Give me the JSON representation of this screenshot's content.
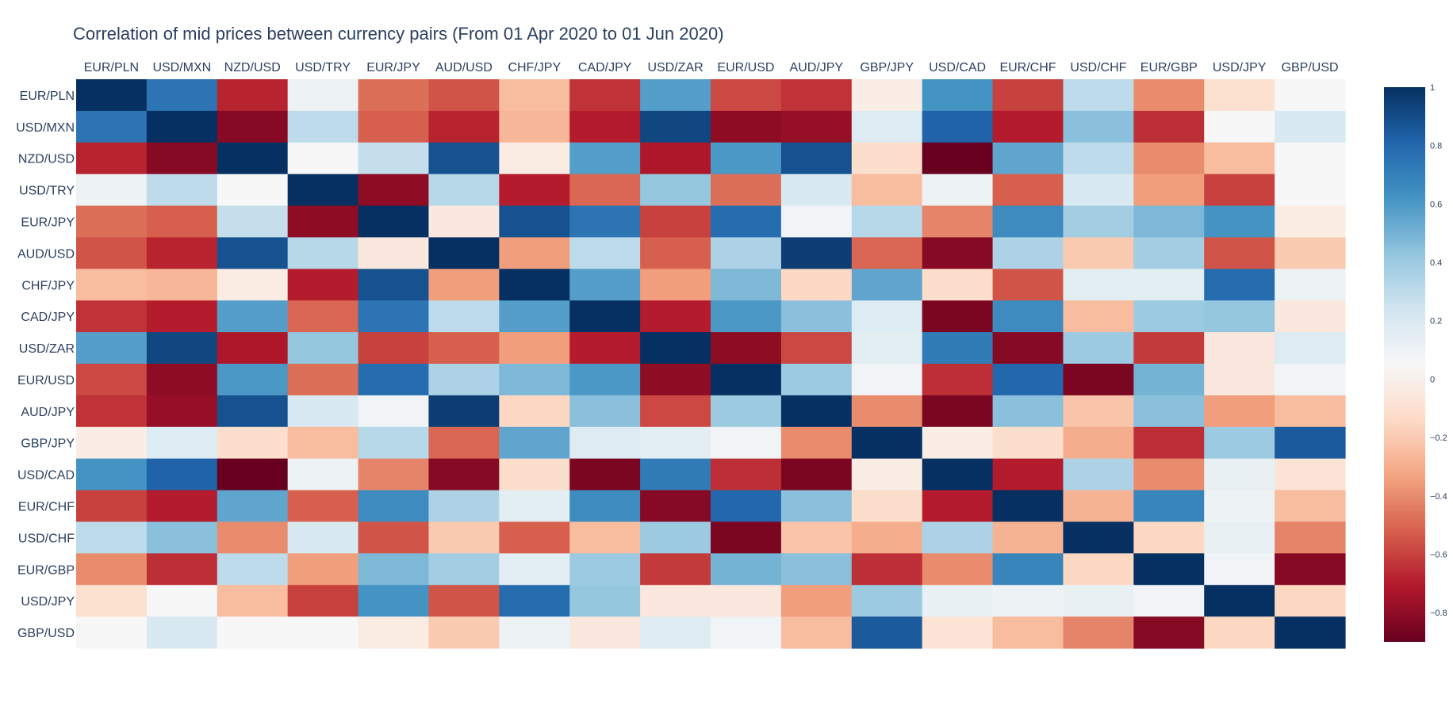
{
  "chart_data": {
    "type": "heatmap",
    "title": "Correlation of mid prices between currency pairs (From 01 Apr 2020 to 01 Jun 2020)",
    "x_labels": [
      "EUR/PLN",
      "USD/MXN",
      "NZD/USD",
      "USD/TRY",
      "EUR/JPY",
      "AUD/USD",
      "CHF/JPY",
      "CAD/JPY",
      "USD/ZAR",
      "EUR/USD",
      "AUD/JPY",
      "GBP/JPY",
      "USD/CAD",
      "EUR/CHF",
      "USD/CHF",
      "EUR/GBP",
      "USD/JPY",
      "GBP/USD"
    ],
    "y_labels": [
      "EUR/PLN",
      "USD/MXN",
      "NZD/USD",
      "USD/TRY",
      "EUR/JPY",
      "AUD/USD",
      "CHF/JPY",
      "CAD/JPY",
      "USD/ZAR",
      "EUR/USD",
      "AUD/JPY",
      "GBP/JPY",
      "USD/CAD",
      "EUR/CHF",
      "USD/CHF",
      "EUR/GBP",
      "USD/JPY",
      "GBP/USD"
    ],
    "z": [
      [
        1.0,
        0.75,
        -0.68,
        0.1,
        -0.48,
        -0.55,
        -0.25,
        -0.64,
        0.58,
        -0.58,
        -0.64,
        -0.02,
        0.62,
        -0.6,
        0.3,
        -0.4,
        -0.1,
        0.05
      ],
      [
        0.75,
        1.0,
        -0.82,
        0.3,
        -0.52,
        -0.68,
        -0.27,
        -0.7,
        0.92,
        -0.8,
        -0.78,
        0.18,
        0.82,
        -0.7,
        0.45,
        -0.65,
        0.05,
        0.2
      ],
      [
        -0.68,
        -0.82,
        1.0,
        0.05,
        0.28,
        0.88,
        -0.03,
        0.58,
        -0.72,
        0.6,
        0.88,
        -0.12,
        -0.98,
        0.55,
        0.3,
        -0.4,
        -0.25,
        0.05
      ],
      [
        0.1,
        0.3,
        0.05,
        1.0,
        -0.8,
        0.32,
        -0.7,
        -0.5,
        0.42,
        -0.48,
        0.2,
        -0.25,
        0.1,
        -0.52,
        0.2,
        -0.35,
        -0.6,
        0.05
      ],
      [
        -0.48,
        -0.52,
        0.28,
        -0.8,
        1.0,
        -0.05,
        0.88,
        0.75,
        -0.6,
        0.78,
        0.08,
        0.32,
        -0.42,
        0.65,
        0.38,
        0.48,
        0.62,
        -0.03
      ],
      [
        -0.55,
        -0.68,
        0.88,
        0.32,
        -0.05,
        1.0,
        -0.35,
        0.3,
        -0.52,
        0.35,
        0.95,
        -0.5,
        -0.82,
        0.35,
        -0.2,
        0.38,
        -0.55,
        -0.2
      ],
      [
        -0.25,
        -0.27,
        -0.03,
        -0.7,
        0.88,
        -0.35,
        1.0,
        0.58,
        -0.35,
        0.48,
        -0.15,
        0.55,
        -0.12,
        -0.55,
        0.15,
        0.15,
        0.78,
        0.1
      ],
      [
        -0.64,
        -0.7,
        0.58,
        -0.5,
        0.75,
        0.3,
        0.58,
        1.0,
        -0.7,
        0.6,
        0.45,
        0.18,
        -0.85,
        0.65,
        -0.25,
        0.4,
        0.42,
        -0.05
      ],
      [
        0.58,
        0.92,
        -0.72,
        0.42,
        -0.6,
        -0.52,
        -0.35,
        -0.7,
        1.0,
        -0.8,
        -0.58,
        0.15,
        0.72,
        -0.82,
        0.4,
        -0.62,
        -0.05,
        0.18
      ],
      [
        -0.58,
        -0.8,
        0.6,
        -0.48,
        0.78,
        0.35,
        0.48,
        0.6,
        -0.8,
        1.0,
        0.4,
        0.08,
        -0.65,
        0.8,
        -0.85,
        0.5,
        -0.05,
        0.08
      ],
      [
        -0.64,
        -0.78,
        0.88,
        0.2,
        0.08,
        0.95,
        -0.15,
        0.45,
        -0.58,
        0.4,
        1.0,
        -0.4,
        -0.85,
        0.45,
        -0.22,
        0.45,
        -0.35,
        -0.25
      ],
      [
        -0.02,
        0.18,
        -0.12,
        -0.25,
        0.32,
        -0.5,
        0.55,
        0.18,
        0.15,
        0.08,
        -0.4,
        1.0,
        -0.02,
        -0.12,
        -0.3,
        -0.65,
        0.4,
        0.85
      ],
      [
        0.62,
        0.82,
        -0.98,
        0.1,
        -0.42,
        -0.82,
        -0.12,
        -0.85,
        0.72,
        -0.65,
        -0.85,
        -0.02,
        1.0,
        -0.7,
        0.35,
        -0.4,
        0.12,
        -0.08
      ],
      [
        -0.6,
        -0.7,
        0.55,
        -0.52,
        0.65,
        0.35,
        0.15,
        0.65,
        -0.82,
        0.8,
        0.45,
        -0.12,
        -0.7,
        1.0,
        -0.28,
        0.68,
        0.1,
        -0.25
      ],
      [
        0.3,
        0.45,
        -0.4,
        0.2,
        -0.55,
        -0.2,
        -0.52,
        -0.25,
        0.4,
        -0.85,
        -0.22,
        -0.3,
        0.35,
        -0.28,
        1.0,
        -0.15,
        0.12,
        -0.42
      ],
      [
        -0.4,
        -0.65,
        0.3,
        -0.35,
        0.48,
        0.38,
        0.15,
        0.4,
        -0.62,
        0.5,
        0.45,
        -0.65,
        -0.4,
        0.68,
        -0.15,
        1.0,
        0.08,
        -0.82
      ],
      [
        -0.1,
        0.05,
        -0.25,
        -0.6,
        0.62,
        -0.55,
        0.78,
        0.42,
        -0.05,
        -0.05,
        -0.35,
        0.4,
        0.12,
        0.1,
        0.12,
        0.08,
        1.0,
        -0.15
      ],
      [
        0.05,
        0.2,
        0.05,
        0.05,
        -0.03,
        -0.2,
        0.1,
        -0.05,
        0.18,
        0.08,
        -0.25,
        0.85,
        -0.08,
        -0.25,
        -0.42,
        -0.82,
        -0.15,
        1.0
      ]
    ],
    "zmin": -0.9,
    "zmax": 1.0,
    "colorscale": "RdBu",
    "colorbar_ticks": [
      {
        "value": 1,
        "label": "1"
      },
      {
        "value": 0.8,
        "label": "0.8"
      },
      {
        "value": 0.6,
        "label": "0.6"
      },
      {
        "value": 0.4,
        "label": "0.4"
      },
      {
        "value": 0.2,
        "label": "0.2"
      },
      {
        "value": 0,
        "label": "0"
      },
      {
        "value": -0.2,
        "label": "−0.2"
      },
      {
        "value": -0.4,
        "label": "−0.4"
      },
      {
        "value": -0.6,
        "label": "−0.6"
      },
      {
        "value": -0.8,
        "label": "−0.8"
      }
    ],
    "x_axis_side": "top",
    "y_axis_reversed": true,
    "legend": "colorbar-right",
    "grid": false
  },
  "colors": {
    "text": "#2a3f5f",
    "background": "#ffffff"
  }
}
